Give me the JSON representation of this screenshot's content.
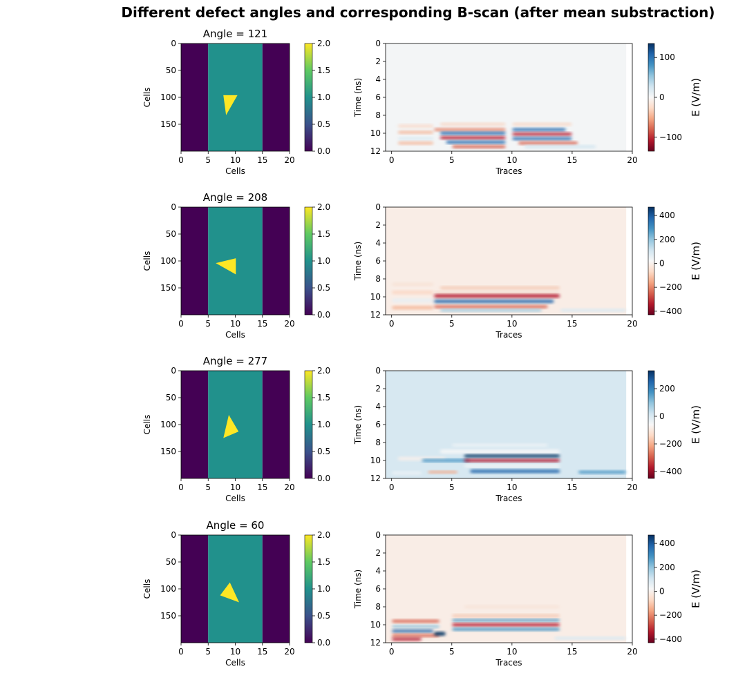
{
  "figure": {
    "suptitle": "Different defect angles and corresponding B-scan (after mean substraction)"
  },
  "colors": {
    "viridis_low": "#440154",
    "viridis_mid": "#21918c",
    "viridis_high": "#fde725",
    "rdbu_negative": "#67001f",
    "rdbu_positive": "#053061"
  },
  "chart_data": [
    {
      "type": "heatmap",
      "title": "Angle = 121",
      "xlabel": "Cells",
      "ylabel": "Cells",
      "xlim": [
        0,
        20
      ],
      "ylim": [
        200,
        0
      ],
      "xticks": [
        "0",
        "5",
        "10",
        "15",
        "20"
      ],
      "yticks": [
        "0",
        "50",
        "100",
        "150"
      ],
      "colorbar": {
        "range": [
          0,
          2
        ],
        "ticks": [
          "0.0",
          "0.5",
          "1.0",
          "1.5",
          "2.0"
        ],
        "colormap": "viridis"
      },
      "regions": [
        {
          "x": [
            0,
            5
          ],
          "value": 0
        },
        {
          "x": [
            5,
            15
          ],
          "value": 1
        },
        {
          "x": [
            15,
            20
          ],
          "value": 0
        }
      ],
      "defect": {
        "value": 2,
        "vertices": [
          [
            7.8,
            96
          ],
          [
            10.4,
            96
          ],
          [
            8.3,
            133
          ]
        ]
      }
    },
    {
      "type": "heatmap",
      "title": "",
      "xlabel": "Traces",
      "ylabel": "Time (ns)",
      "xlim": [
        -0.5,
        20
      ],
      "ylim": [
        12,
        0
      ],
      "xticks": [
        "0",
        "5",
        "10",
        "15",
        "20"
      ],
      "yticks": [
        "0",
        "2",
        "4",
        "6",
        "8",
        "10",
        "12"
      ],
      "background": "#f3f5f6",
      "colorbar": {
        "label": "E (V/m)",
        "range": [
          -135,
          135
        ],
        "ticks": [
          "100",
          "0",
          "−100"
        ],
        "colormap": "RdBu"
      },
      "bands": [
        {
          "t": 9.2,
          "x": [
            0.5,
            3.5
          ],
          "color": "#f9dccd",
          "w": 0.35
        },
        {
          "t": 9.9,
          "x": [
            0.5,
            3.5
          ],
          "color": "#f4b79a",
          "w": 0.3
        },
        {
          "t": 10.6,
          "x": [
            0.5,
            3.5
          ],
          "color": "#d9e9f2",
          "w": 0.3
        },
        {
          "t": 11.1,
          "x": [
            0.5,
            3.5
          ],
          "color": "#f4b79a",
          "w": 0.3
        },
        {
          "t": 9.0,
          "x": [
            4.0,
            9.5
          ],
          "color": "#f8d7c6",
          "w": 0.3
        },
        {
          "t": 9.6,
          "x": [
            3.5,
            9.5
          ],
          "color": "#e58267",
          "w": 0.3
        },
        {
          "t": 10.0,
          "x": [
            4.0,
            9.5
          ],
          "color": "#2166ac",
          "w": 0.3
        },
        {
          "t": 10.5,
          "x": [
            4.0,
            9.5
          ],
          "color": "#b2182b",
          "w": 0.3
        },
        {
          "t": 11.0,
          "x": [
            4.5,
            9.5
          ],
          "color": "#2166ac",
          "w": 0.3
        },
        {
          "t": 11.5,
          "x": [
            5.0,
            9.5
          ],
          "color": "#d6604d",
          "w": 0.3
        },
        {
          "t": 9.0,
          "x": [
            10.0,
            15.0
          ],
          "color": "#f8d7c6",
          "w": 0.3
        },
        {
          "t": 9.6,
          "x": [
            10.0,
            14.5
          ],
          "color": "#2166ac",
          "w": 0.3
        },
        {
          "t": 10.1,
          "x": [
            10.0,
            15.0
          ],
          "color": "#b2182b",
          "w": 0.3
        },
        {
          "t": 10.6,
          "x": [
            10.0,
            15.0
          ],
          "color": "#2166ac",
          "w": 0.3
        },
        {
          "t": 11.1,
          "x": [
            10.5,
            15.5
          ],
          "color": "#d6604d",
          "w": 0.3
        },
        {
          "t": 11.5,
          "x": [
            11.0,
            17.0
          ],
          "color": "#d1e5f0",
          "w": 0.3
        }
      ]
    },
    {
      "type": "heatmap",
      "title": "Angle = 208",
      "xlabel": "Cells",
      "ylabel": "Cells",
      "xlim": [
        0,
        20
      ],
      "ylim": [
        200,
        0
      ],
      "xticks": [
        "0",
        "5",
        "10",
        "15",
        "20"
      ],
      "yticks": [
        "0",
        "50",
        "100",
        "150"
      ],
      "colorbar": {
        "range": [
          0,
          2
        ],
        "ticks": [
          "0.0",
          "0.5",
          "1.0",
          "1.5",
          "2.0"
        ],
        "colormap": "viridis"
      },
      "regions": [
        {
          "x": [
            0,
            5
          ],
          "value": 0
        },
        {
          "x": [
            5,
            15
          ],
          "value": 1
        },
        {
          "x": [
            15,
            20
          ],
          "value": 0
        }
      ],
      "defect": {
        "value": 2,
        "vertices": [
          [
            6.4,
            104
          ],
          [
            10.1,
            95
          ],
          [
            10.1,
            125
          ]
        ]
      }
    },
    {
      "type": "heatmap",
      "title": "",
      "xlabel": "Traces",
      "ylabel": "Time (ns)",
      "xlim": [
        -0.5,
        20
      ],
      "ylim": [
        12,
        0
      ],
      "xticks": [
        "0",
        "5",
        "10",
        "15",
        "20"
      ],
      "yticks": [
        "0",
        "2",
        "4",
        "6",
        "8",
        "10",
        "12"
      ],
      "background": "#f9ede6",
      "colorbar": {
        "label": "E (V/m)",
        "range": [
          -430,
          470
        ],
        "ticks": [
          "400",
          "200",
          "0",
          "−200",
          "−400"
        ],
        "colormap": "RdBu"
      },
      "bands": [
        {
          "t": 8.6,
          "x": [
            0.0,
            3.5
          ],
          "color": "#f7e2d6",
          "w": 0.35
        },
        {
          "t": 9.5,
          "x": [
            0.0,
            3.5
          ],
          "color": "#fbd6c3",
          "w": 0.35
        },
        {
          "t": 10.4,
          "x": [
            0.0,
            3.5
          ],
          "color": "#e6eef4",
          "w": 0.35
        },
        {
          "t": 11.2,
          "x": [
            0.0,
            3.5
          ],
          "color": "#f4b79a",
          "w": 0.35
        },
        {
          "t": 9.0,
          "x": [
            4.0,
            14.0
          ],
          "color": "#f4c8b2",
          "w": 0.3
        },
        {
          "t": 9.5,
          "x": [
            3.5,
            14.0
          ],
          "color": "#f3dbce",
          "w": 0.25
        },
        {
          "t": 9.9,
          "x": [
            3.5,
            14.0
          ],
          "color": "#b2182b",
          "w": 0.35
        },
        {
          "t": 10.5,
          "x": [
            3.5,
            13.5
          ],
          "color": "#2166ac",
          "w": 0.35
        },
        {
          "t": 11.1,
          "x": [
            3.5,
            13.0
          ],
          "color": "#d6604d",
          "w": 0.3
        },
        {
          "t": 11.5,
          "x": [
            4.0,
            12.5
          ],
          "color": "#92c5de",
          "w": 0.25
        },
        {
          "t": 11.5,
          "x": [
            14.0,
            19.5
          ],
          "color": "#d9e9f2",
          "w": 0.3
        }
      ]
    },
    {
      "type": "heatmap",
      "title": "Angle = 277",
      "xlabel": "Cells",
      "ylabel": "Cells",
      "xlim": [
        0,
        20
      ],
      "ylim": [
        200,
        0
      ],
      "xticks": [
        "0",
        "5",
        "10",
        "15",
        "20"
      ],
      "yticks": [
        "0",
        "50",
        "100",
        "150"
      ],
      "colorbar": {
        "range": [
          0,
          2
        ],
        "ticks": [
          "0.0",
          "0.5",
          "1.0",
          "1.5",
          "2.0"
        ],
        "colormap": "viridis"
      },
      "regions": [
        {
          "x": [
            0,
            5
          ],
          "value": 0
        },
        {
          "x": [
            5,
            15
          ],
          "value": 1
        },
        {
          "x": [
            15,
            20
          ],
          "value": 0
        }
      ],
      "defect": {
        "value": 2,
        "vertices": [
          [
            8.8,
            82
          ],
          [
            10.6,
            113
          ],
          [
            7.8,
            125
          ]
        ]
      }
    },
    {
      "type": "heatmap",
      "title": "",
      "xlabel": "Traces",
      "ylabel": "Time (ns)",
      "xlim": [
        -0.5,
        20
      ],
      "ylim": [
        12,
        0
      ],
      "xticks": [
        "0",
        "5",
        "10",
        "15",
        "20"
      ],
      "yticks": [
        "0",
        "2",
        "4",
        "6",
        "8",
        "10",
        "12"
      ],
      "background": "#d7e8f1",
      "colorbar": {
        "label": "E (V/m)",
        "range": [
          -450,
          330
        ],
        "ticks": [
          "200",
          "0",
          "−200",
          "−400"
        ],
        "colormap": "RdBu"
      },
      "bands": [
        {
          "t": 8.3,
          "x": [
            5.0,
            13.0
          ],
          "color": "#eef3f6",
          "w": 0.3
        },
        {
          "t": 9.0,
          "x": [
            4.0,
            14.0
          ],
          "color": "#f7f7f7",
          "w": 0.4
        },
        {
          "t": 9.8,
          "x": [
            0.5,
            4.5
          ],
          "color": "#f9f0eb",
          "w": 0.35
        },
        {
          "t": 10.0,
          "x": [
            2.5,
            6.5
          ],
          "color": "#4393c3",
          "w": 0.3
        },
        {
          "t": 9.5,
          "x": [
            6.0,
            14.0
          ],
          "color": "#053061",
          "w": 0.3
        },
        {
          "t": 10.0,
          "x": [
            6.0,
            14.0
          ],
          "color": "#b2182b",
          "w": 0.3
        },
        {
          "t": 10.6,
          "x": [
            6.0,
            14.0
          ],
          "color": "#f7f7f7",
          "w": 0.25
        },
        {
          "t": 11.2,
          "x": [
            6.5,
            14.0
          ],
          "color": "#2166ac",
          "w": 0.35
        },
        {
          "t": 11.3,
          "x": [
            3.0,
            5.5
          ],
          "color": "#f4a582",
          "w": 0.25
        },
        {
          "t": 11.4,
          "x": [
            0.0,
            2.5
          ],
          "color": "#eef3f6",
          "w": 0.3
        },
        {
          "t": 11.3,
          "x": [
            15.5,
            19.5
          ],
          "color": "#4393c3",
          "w": 0.3
        }
      ]
    },
    {
      "type": "heatmap",
      "title": "Angle = 60",
      "xlabel": "Cells",
      "ylabel": "Cells",
      "xlim": [
        0,
        20
      ],
      "ylim": [
        200,
        0
      ],
      "xticks": [
        "0",
        "5",
        "10",
        "15",
        "20"
      ],
      "yticks": [
        "0",
        "50",
        "100",
        "150"
      ],
      "colorbar": {
        "range": [
          0,
          2
        ],
        "ticks": [
          "0.0",
          "0.5",
          "1.0",
          "1.5",
          "2.0"
        ],
        "colormap": "viridis"
      },
      "regions": [
        {
          "x": [
            0,
            5
          ],
          "value": 0
        },
        {
          "x": [
            5,
            15
          ],
          "value": 1
        },
        {
          "x": [
            15,
            20
          ],
          "value": 0
        }
      ],
      "defect": {
        "value": 2,
        "vertices": [
          [
            7.2,
            112
          ],
          [
            9.0,
            88
          ],
          [
            10.7,
            125
          ]
        ]
      }
    },
    {
      "type": "heatmap",
      "title": "",
      "xlabel": "Traces",
      "ylabel": "Time (ns)",
      "xlim": [
        -0.5,
        20
      ],
      "ylim": [
        12,
        0
      ],
      "xticks": [
        "0",
        "5",
        "10",
        "15",
        "20"
      ],
      "yticks": [
        "0",
        "2",
        "4",
        "6",
        "8",
        "10",
        "12"
      ],
      "background": "#f9ede6",
      "colorbar": {
        "label": "E (V/m)",
        "range": [
          -430,
          470
        ],
        "ticks": [
          "400",
          "200",
          "0",
          "−200",
          "−400"
        ],
        "colormap": "RdBu"
      },
      "bands": [
        {
          "t": 8.0,
          "x": [
            6.0,
            14.0
          ],
          "color": "#f7e3d8",
          "w": 0.3
        },
        {
          "t": 9.0,
          "x": [
            5.0,
            14.0
          ],
          "color": "#f4c8b2",
          "w": 0.3
        },
        {
          "t": 9.5,
          "x": [
            5.0,
            14.0
          ],
          "color": "#4393c3",
          "w": 0.25
        },
        {
          "t": 10.0,
          "x": [
            5.0,
            14.0
          ],
          "color": "#b2182b",
          "w": 0.3
        },
        {
          "t": 10.5,
          "x": [
            5.0,
            14.0
          ],
          "color": "#4393c3",
          "w": 0.3
        },
        {
          "t": 9.6,
          "x": [
            0.0,
            4.0
          ],
          "color": "#d6604d",
          "w": 0.3
        },
        {
          "t": 10.2,
          "x": [
            0.0,
            4.0
          ],
          "color": "#92c5de",
          "w": 0.3
        },
        {
          "t": 10.7,
          "x": [
            0.0,
            3.5
          ],
          "color": "#2166ac",
          "w": 0.3
        },
        {
          "t": 11.2,
          "x": [
            0.0,
            4.0
          ],
          "color": "#d6604d",
          "w": 0.3
        },
        {
          "t": 11.0,
          "x": [
            3.5,
            4.5
          ],
          "color": "#053061",
          "w": 0.4
        },
        {
          "t": 11.5,
          "x": [
            13.5,
            19.5
          ],
          "color": "#d9e9f2",
          "w": 0.3
        },
        {
          "t": 11.6,
          "x": [
            0.0,
            2.5
          ],
          "color": "#b2182b",
          "w": 0.3
        }
      ]
    }
  ]
}
